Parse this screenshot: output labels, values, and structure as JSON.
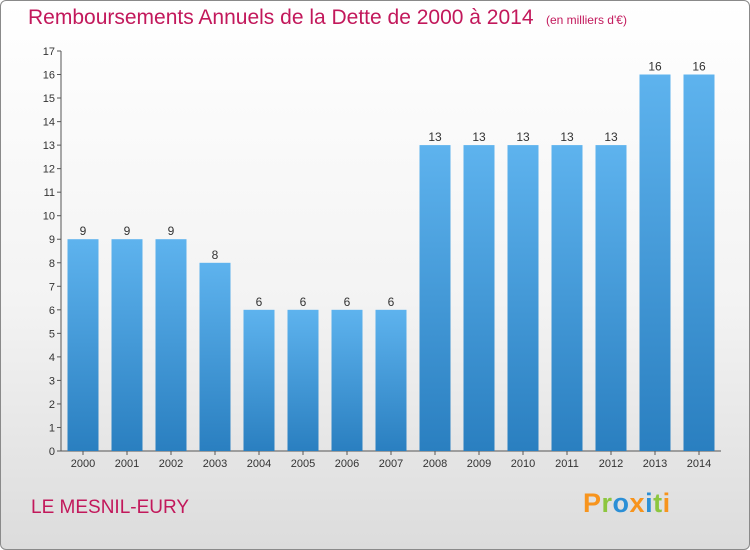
{
  "header": {
    "title": "Remboursements Annuels de la Dette de 2000 à 2014",
    "subtitle": "(en milliers d'€)"
  },
  "footer": {
    "commune": "LE MESNIL-EURY",
    "logo_text": "Proxiti"
  },
  "colors": {
    "title": "#c2185b",
    "bar_top": "#5eb3ee",
    "bar_bottom": "#2a7fc0",
    "logo_letters": [
      "#f7941d",
      "#8dc63f",
      "#2b8fd6",
      "#f7941d",
      "#2b8fd6",
      "#8dc63f",
      "#f7941d"
    ]
  },
  "chart_data": {
    "type": "bar",
    "title": "Remboursements Annuels de la Dette de 2000 à 2014",
    "subtitle": "(en milliers d'€)",
    "categories": [
      "2000",
      "2001",
      "2002",
      "2003",
      "2004",
      "2005",
      "2006",
      "2007",
      "2008",
      "2009",
      "2010",
      "2011",
      "2012",
      "2013",
      "2014"
    ],
    "values": [
      9,
      9,
      9,
      8,
      6,
      6,
      6,
      6,
      13,
      13,
      13,
      13,
      13,
      16,
      16
    ],
    "ylim": [
      0,
      17
    ],
    "yticks": [
      0,
      1,
      2,
      3,
      4,
      5,
      6,
      7,
      8,
      9,
      10,
      11,
      12,
      13,
      14,
      15,
      16,
      17
    ],
    "grid": false,
    "data_labels": true
  }
}
